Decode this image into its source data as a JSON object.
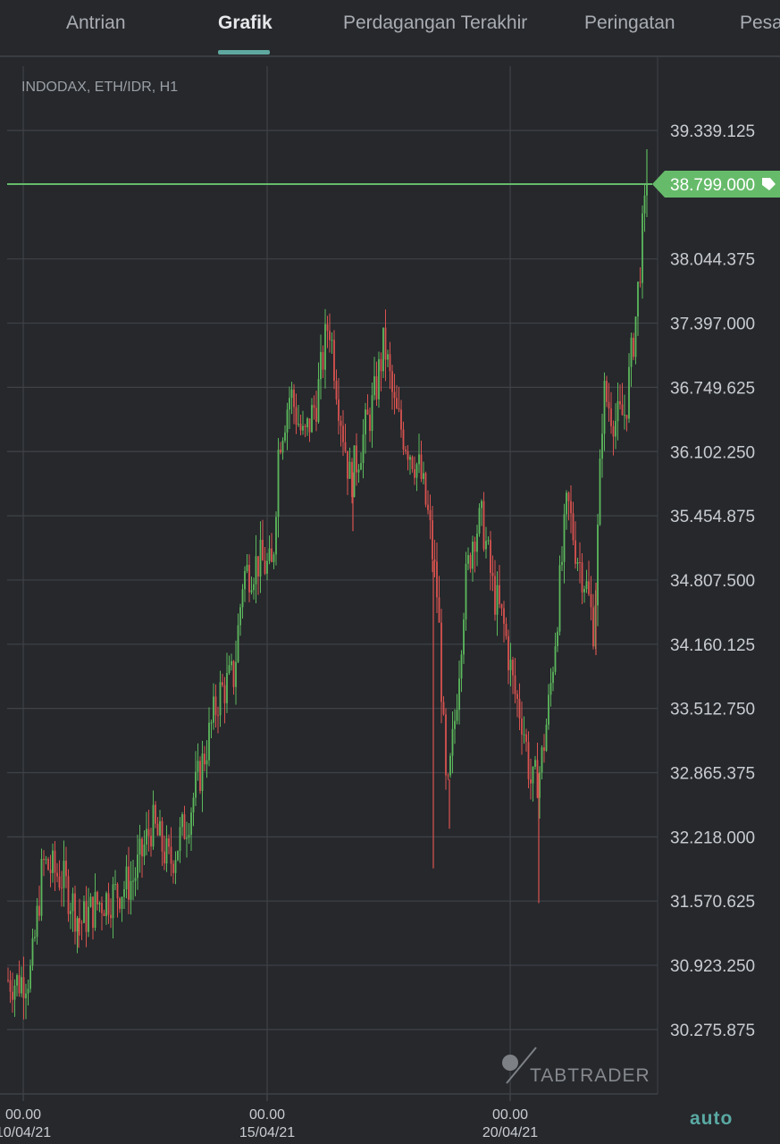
{
  "tabs": [
    {
      "label": "Antrian",
      "active": false
    },
    {
      "label": "Grafik",
      "active": true
    },
    {
      "label": "Perdagangan Terakhir",
      "active": false
    },
    {
      "label": "Peringatan",
      "active": false
    },
    {
      "label": "Pesa",
      "active": false
    }
  ],
  "chart_title": "INDODAX, ETH/IDR, H1",
  "watermark": "TABTRADER",
  "auto_label": "auto",
  "price_tag": "38.799.000",
  "colors": {
    "up": "#5cb85c",
    "down": "#d9534f",
    "price_line": "#66bb6a",
    "grid": "#3f4247",
    "text": "#c8ccd0"
  },
  "chart_data": {
    "type": "candlestick",
    "title": "INDODAX, ETH/IDR, H1",
    "y_ticks": [
      39339125,
      38044375,
      37397000,
      36749625,
      36102250,
      35454875,
      34807500,
      34160125,
      33512750,
      32865375,
      32218000,
      31570625,
      30923250,
      30275875
    ],
    "y_tick_labels": [
      "39.339.125",
      "38.044.375",
      "37.397.000",
      "36.749.625",
      "36.102.250",
      "35.454.875",
      "34.807.500",
      "34.160.125",
      "33.512.750",
      "32.865.375",
      "32.218.000",
      "31.570.625",
      "30.923.250",
      "30.275.875"
    ],
    "x_ticks": [
      {
        "time": "00.00",
        "date": "10/04/21"
      },
      {
        "time": "00.00",
        "date": "15/04/21"
      },
      {
        "time": "00.00",
        "date": "20/04/21"
      }
    ],
    "last_price": 38799000,
    "close_path": [
      [
        0,
        30800000
      ],
      [
        20,
        30750000
      ],
      [
        35,
        30850000
      ],
      [
        48,
        31950000
      ],
      [
        70,
        31800000
      ],
      [
        90,
        31350000
      ],
      [
        110,
        31550000
      ],
      [
        130,
        31650000
      ],
      [
        150,
        31800000
      ],
      [
        170,
        32350000
      ],
      [
        190,
        31950000
      ],
      [
        210,
        32400000
      ],
      [
        225,
        32900000
      ],
      [
        245,
        33650000
      ],
      [
        262,
        33850000
      ],
      [
        272,
        34850000
      ],
      [
        290,
        35000000
      ],
      [
        305,
        34900000
      ],
      [
        312,
        36200000
      ],
      [
        325,
        36700000
      ],
      [
        340,
        36200000
      ],
      [
        355,
        36650000
      ],
      [
        368,
        37450000
      ],
      [
        378,
        36700000
      ],
      [
        392,
        35800000
      ],
      [
        405,
        36200000
      ],
      [
        418,
        36600000
      ],
      [
        430,
        37200000
      ],
      [
        442,
        36500000
      ],
      [
        455,
        36200000
      ],
      [
        470,
        35900000
      ],
      [
        480,
        35400000
      ],
      [
        490,
        34600000
      ],
      [
        500,
        32500000
      ],
      [
        510,
        33500000
      ],
      [
        520,
        34700000
      ],
      [
        530,
        35300000
      ],
      [
        540,
        35400000
      ],
      [
        552,
        34700000
      ],
      [
        565,
        34300000
      ],
      [
        575,
        33700000
      ],
      [
        585,
        33400000
      ],
      [
        595,
        32700000
      ],
      [
        605,
        32900000
      ],
      [
        615,
        33600000
      ],
      [
        625,
        34600000
      ],
      [
        635,
        35600000
      ],
      [
        645,
        35100000
      ],
      [
        655,
        34800000
      ],
      [
        665,
        34300000
      ],
      [
        675,
        36700000
      ],
      [
        690,
        36400000
      ],
      [
        700,
        36500000
      ],
      [
        712,
        37500000
      ],
      [
        720,
        38400000
      ],
      [
        726,
        38799000
      ]
    ],
    "spikes": [
      {
        "x": 485,
        "low": 31900000
      },
      {
        "x": 503,
        "low": 32300000
      },
      {
        "x": 603,
        "low": 31550000
      },
      {
        "x": 667,
        "low": 34050000
      },
      {
        "x": 395,
        "low": 35300000
      },
      {
        "x": 88,
        "low": 31100000
      }
    ]
  }
}
